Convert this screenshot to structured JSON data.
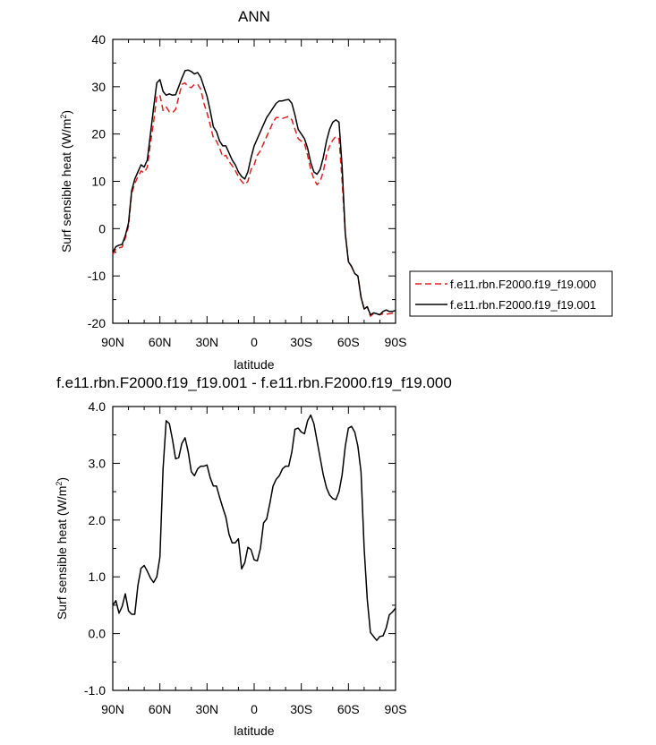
{
  "chart_data": [
    {
      "type": "line",
      "title": "ANN",
      "xlabel": "latitude",
      "ylabel": "Surf sensible heat (W/m",
      "ylabel_sup": "2",
      "ylabel_close": ")",
      "xlim": [
        90,
        -90
      ],
      "ylim": [
        -20,
        40
      ],
      "xticks": [
        {
          "value": 90,
          "label": "90N"
        },
        {
          "value": 60,
          "label": "60N"
        },
        {
          "value": 30,
          "label": "30N"
        },
        {
          "value": 0,
          "label": "0"
        },
        {
          "value": -30,
          "label": "30S"
        },
        {
          "value": -60,
          "label": "60S"
        },
        {
          "value": -90,
          "label": "90S"
        }
      ],
      "yticks": [
        {
          "value": 40,
          "label": "40"
        },
        {
          "value": 30,
          "label": "30"
        },
        {
          "value": 20,
          "label": "20"
        },
        {
          "value": 10,
          "label": "10"
        },
        {
          "value": 0,
          "label": "0"
        },
        {
          "value": -10,
          "label": "-10"
        },
        {
          "value": -20,
          "label": "-20"
        }
      ],
      "legend_position": "right",
      "series": [
        {
          "name": "f.e11.rbn.F2000.f19_f19.000",
          "color": "#e02020",
          "dash": true,
          "x": [
            90,
            88,
            86,
            84,
            82,
            80,
            78,
            76,
            74,
            72,
            70,
            68,
            66,
            64,
            62,
            60,
            58,
            56,
            54,
            52,
            50,
            48,
            46,
            44,
            42,
            40,
            38,
            36,
            34,
            32,
            30,
            28,
            26,
            24,
            22,
            20,
            18,
            16,
            14,
            12,
            10,
            8,
            6,
            4,
            2,
            0,
            -2,
            -4,
            -6,
            -8,
            -10,
            -12,
            -14,
            -16,
            -18,
            -20,
            -22,
            -24,
            -26,
            -28,
            -30,
            -32,
            -34,
            -36,
            -38,
            -40,
            -42,
            -44,
            -46,
            -48,
            -50,
            -52,
            -54,
            -56,
            -58,
            -60,
            -62,
            -64,
            -66,
            -68,
            -70,
            -72,
            -74,
            -76,
            -78,
            -80,
            -82,
            -84,
            -86,
            -88,
            -90
          ],
          "y": [
            -5.5,
            -4.3,
            -4.1,
            -3.9,
            -2.0,
            0.5,
            7.5,
            9.5,
            11.0,
            12.2,
            11.8,
            13.0,
            18.0,
            22.5,
            28.0,
            28.2,
            25.0,
            25.7,
            24.7,
            24.5,
            25.2,
            27.8,
            30.5,
            30.8,
            30.0,
            29.8,
            30.5,
            30.5,
            29.5,
            26.5,
            24.5,
            22.0,
            19.2,
            18.5,
            17.0,
            15.2,
            15.5,
            14.2,
            13.3,
            12.3,
            11.0,
            10.0,
            9.3,
            10.0,
            12.5,
            13.5,
            15.5,
            16.5,
            18.0,
            19.5,
            21.0,
            22.5,
            23.5,
            23.5,
            23.3,
            23.5,
            23.7,
            23.0,
            21.0,
            19.0,
            18.5,
            18.0,
            15.5,
            12.5,
            10.5,
            9.3,
            10.0,
            12.0,
            15.5,
            17.5,
            18.7,
            19.5,
            19.0,
            10.0,
            -1.0,
            -6.8,
            -8.0,
            -9.5,
            -10.0,
            -14.5,
            -17.0,
            -16.5,
            -18.5,
            -18.0,
            -18.0,
            -18.2,
            -18.0,
            -18.1,
            -18.0,
            -17.9,
            -17.8
          ]
        },
        {
          "name": "f.e11.rbn.F2000.f19_f19.001",
          "color": "#000000",
          "dash": false,
          "x": [
            90,
            88,
            86,
            84,
            82,
            80,
            78,
            76,
            74,
            72,
            70,
            68,
            66,
            64,
            62,
            60,
            58,
            56,
            54,
            52,
            50,
            48,
            46,
            44,
            42,
            40,
            38,
            36,
            34,
            32,
            30,
            28,
            26,
            24,
            22,
            20,
            18,
            16,
            14,
            12,
            10,
            8,
            6,
            4,
            2,
            0,
            -2,
            -4,
            -6,
            -8,
            -10,
            -12,
            -14,
            -16,
            -18,
            -20,
            -22,
            -24,
            -26,
            -28,
            -30,
            -32,
            -34,
            -36,
            -38,
            -40,
            -42,
            -44,
            -46,
            -48,
            -50,
            -52,
            -54,
            -56,
            -58,
            -60,
            -62,
            -64,
            -66,
            -68,
            -70,
            -72,
            -74,
            -76,
            -78,
            -80,
            -82,
            -84,
            -86,
            -88,
            -90
          ],
          "y": [
            -5.0,
            -3.8,
            -3.5,
            -3.3,
            -1.5,
            1.2,
            8.0,
            10.5,
            12.0,
            13.5,
            13.0,
            14.5,
            20.0,
            25.5,
            30.8,
            31.5,
            29.0,
            28.2,
            28.5,
            28.2,
            28.3,
            30.0,
            31.8,
            33.4,
            33.5,
            33.2,
            32.7,
            33.0,
            32.0,
            30.0,
            28.0,
            25.0,
            21.5,
            20.5,
            18.5,
            17.5,
            17.5,
            16.0,
            14.5,
            13.5,
            12.0,
            11.0,
            10.5,
            12.0,
            15.0,
            17.5,
            19.0,
            20.5,
            22.0,
            23.5,
            24.5,
            25.5,
            26.5,
            27.0,
            27.0,
            27.2,
            27.3,
            26.5,
            24.0,
            21.0,
            20.0,
            19.0,
            17.0,
            14.0,
            12.0,
            11.5,
            12.5,
            15.0,
            18.5,
            21.0,
            22.5,
            23.0,
            22.5,
            13.0,
            -1.0,
            -7.0,
            -8.0,
            -9.5,
            -10.0,
            -14.5,
            -17.0,
            -16.5,
            -18.2,
            -17.8,
            -18.0,
            -18.2,
            -17.5,
            -17.2,
            -17.5,
            -17.5,
            -17.3
          ]
        }
      ]
    },
    {
      "type": "line",
      "title": "f.e11.rbn.F2000.f19_f19.001 - f.e11.rbn.F2000.f19_f19.000",
      "xlabel": "latitude",
      "ylabel": "Surf sensible heat (W/m",
      "ylabel_sup": "2",
      "ylabel_close": ")",
      "xlim": [
        90,
        -90
      ],
      "ylim": [
        -1.0,
        4.0
      ],
      "xticks": [
        {
          "value": 90,
          "label": "90N"
        },
        {
          "value": 60,
          "label": "60N"
        },
        {
          "value": 30,
          "label": "30N"
        },
        {
          "value": 0,
          "label": "0"
        },
        {
          "value": -30,
          "label": "30S"
        },
        {
          "value": -60,
          "label": "60S"
        },
        {
          "value": -90,
          "label": "90S"
        }
      ],
      "yticks": [
        {
          "value": 4.0,
          "label": "4.0"
        },
        {
          "value": 3.0,
          "label": "3.0"
        },
        {
          "value": 2.0,
          "label": "2.0"
        },
        {
          "value": 1.0,
          "label": "1.0"
        },
        {
          "value": 0.0,
          "label": "0.0"
        },
        {
          "value": -1.0,
          "label": "-1.0"
        }
      ],
      "series": [
        {
          "color": "#000000",
          "dash": false,
          "x": [
            90,
            88,
            86,
            84,
            82,
            80,
            78,
            76,
            74,
            72,
            70,
            68,
            66,
            64,
            62,
            60,
            58,
            56,
            54,
            52,
            50,
            48,
            46,
            44,
            42,
            40,
            38,
            36,
            34,
            32,
            30,
            28,
            26,
            24,
            22,
            20,
            18,
            16,
            14,
            12,
            10,
            8,
            6,
            4,
            2,
            0,
            -2,
            -4,
            -6,
            -8,
            -10,
            -12,
            -14,
            -16,
            -18,
            -20,
            -22,
            -24,
            -26,
            -28,
            -30,
            -32,
            -34,
            -36,
            -38,
            -40,
            -42,
            -44,
            -46,
            -48,
            -50,
            -52,
            -54,
            -56,
            -58,
            -60,
            -62,
            -64,
            -66,
            -68,
            -70,
            -72,
            -74,
            -76,
            -78,
            -80,
            -82,
            -84,
            -86,
            -88,
            -90
          ],
          "y": [
            0.5,
            0.58,
            0.36,
            0.48,
            0.7,
            0.4,
            0.34,
            0.34,
            0.85,
            1.15,
            1.2,
            1.1,
            0.98,
            0.9,
            1.0,
            1.35,
            2.9,
            3.75,
            3.7,
            3.42,
            3.08,
            3.1,
            3.35,
            3.45,
            3.2,
            2.85,
            2.78,
            2.9,
            2.95,
            2.95,
            2.97,
            2.75,
            2.6,
            2.6,
            2.4,
            2.22,
            2.05,
            1.75,
            1.6,
            1.6,
            1.67,
            1.14,
            1.25,
            1.52,
            1.48,
            1.3,
            1.28,
            1.5,
            1.95,
            2.02,
            2.3,
            2.6,
            2.72,
            2.78,
            2.9,
            2.95,
            2.95,
            3.2,
            3.6,
            3.62,
            3.55,
            3.52,
            3.75,
            3.85,
            3.7,
            3.4,
            3.1,
            2.8,
            2.57,
            2.44,
            2.38,
            2.36,
            2.5,
            2.8,
            3.3,
            3.62,
            3.65,
            3.55,
            3.3,
            2.85,
            1.5,
            0.6,
            0.02,
            -0.05,
            -0.12,
            -0.05,
            -0.04,
            0.1,
            0.33,
            0.38,
            0.45
          ]
        }
      ]
    }
  ]
}
